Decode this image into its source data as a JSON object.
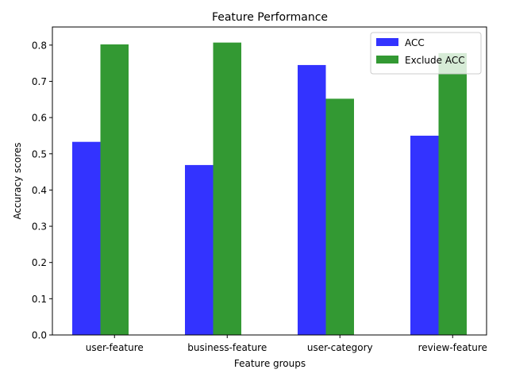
{
  "chart_data": {
    "type": "bar",
    "title": "Feature Performance",
    "xlabel": "Feature groups",
    "ylabel": "Accuracy scores",
    "categories": [
      "user-feature",
      "business-feature",
      "user-category",
      "review-feature"
    ],
    "series": [
      {
        "name": "ACC",
        "color": "#3333ff",
        "values": [
          0.533,
          0.469,
          0.745,
          0.55
        ]
      },
      {
        "name": "Exclude ACC",
        "color": "#339933",
        "values": [
          0.802,
          0.807,
          0.652,
          0.778
        ]
      }
    ],
    "ylim": [
      0,
      0.85
    ],
    "yticks": [
      0.0,
      0.1,
      0.2,
      0.3,
      0.4,
      0.5,
      0.6,
      0.7,
      0.8
    ],
    "ytick_labels": [
      "0.0",
      "0.1",
      "0.2",
      "0.3",
      "0.4",
      "0.5",
      "0.6",
      "0.7",
      "0.8"
    ],
    "grid": false,
    "legend_position": "top-right"
  }
}
